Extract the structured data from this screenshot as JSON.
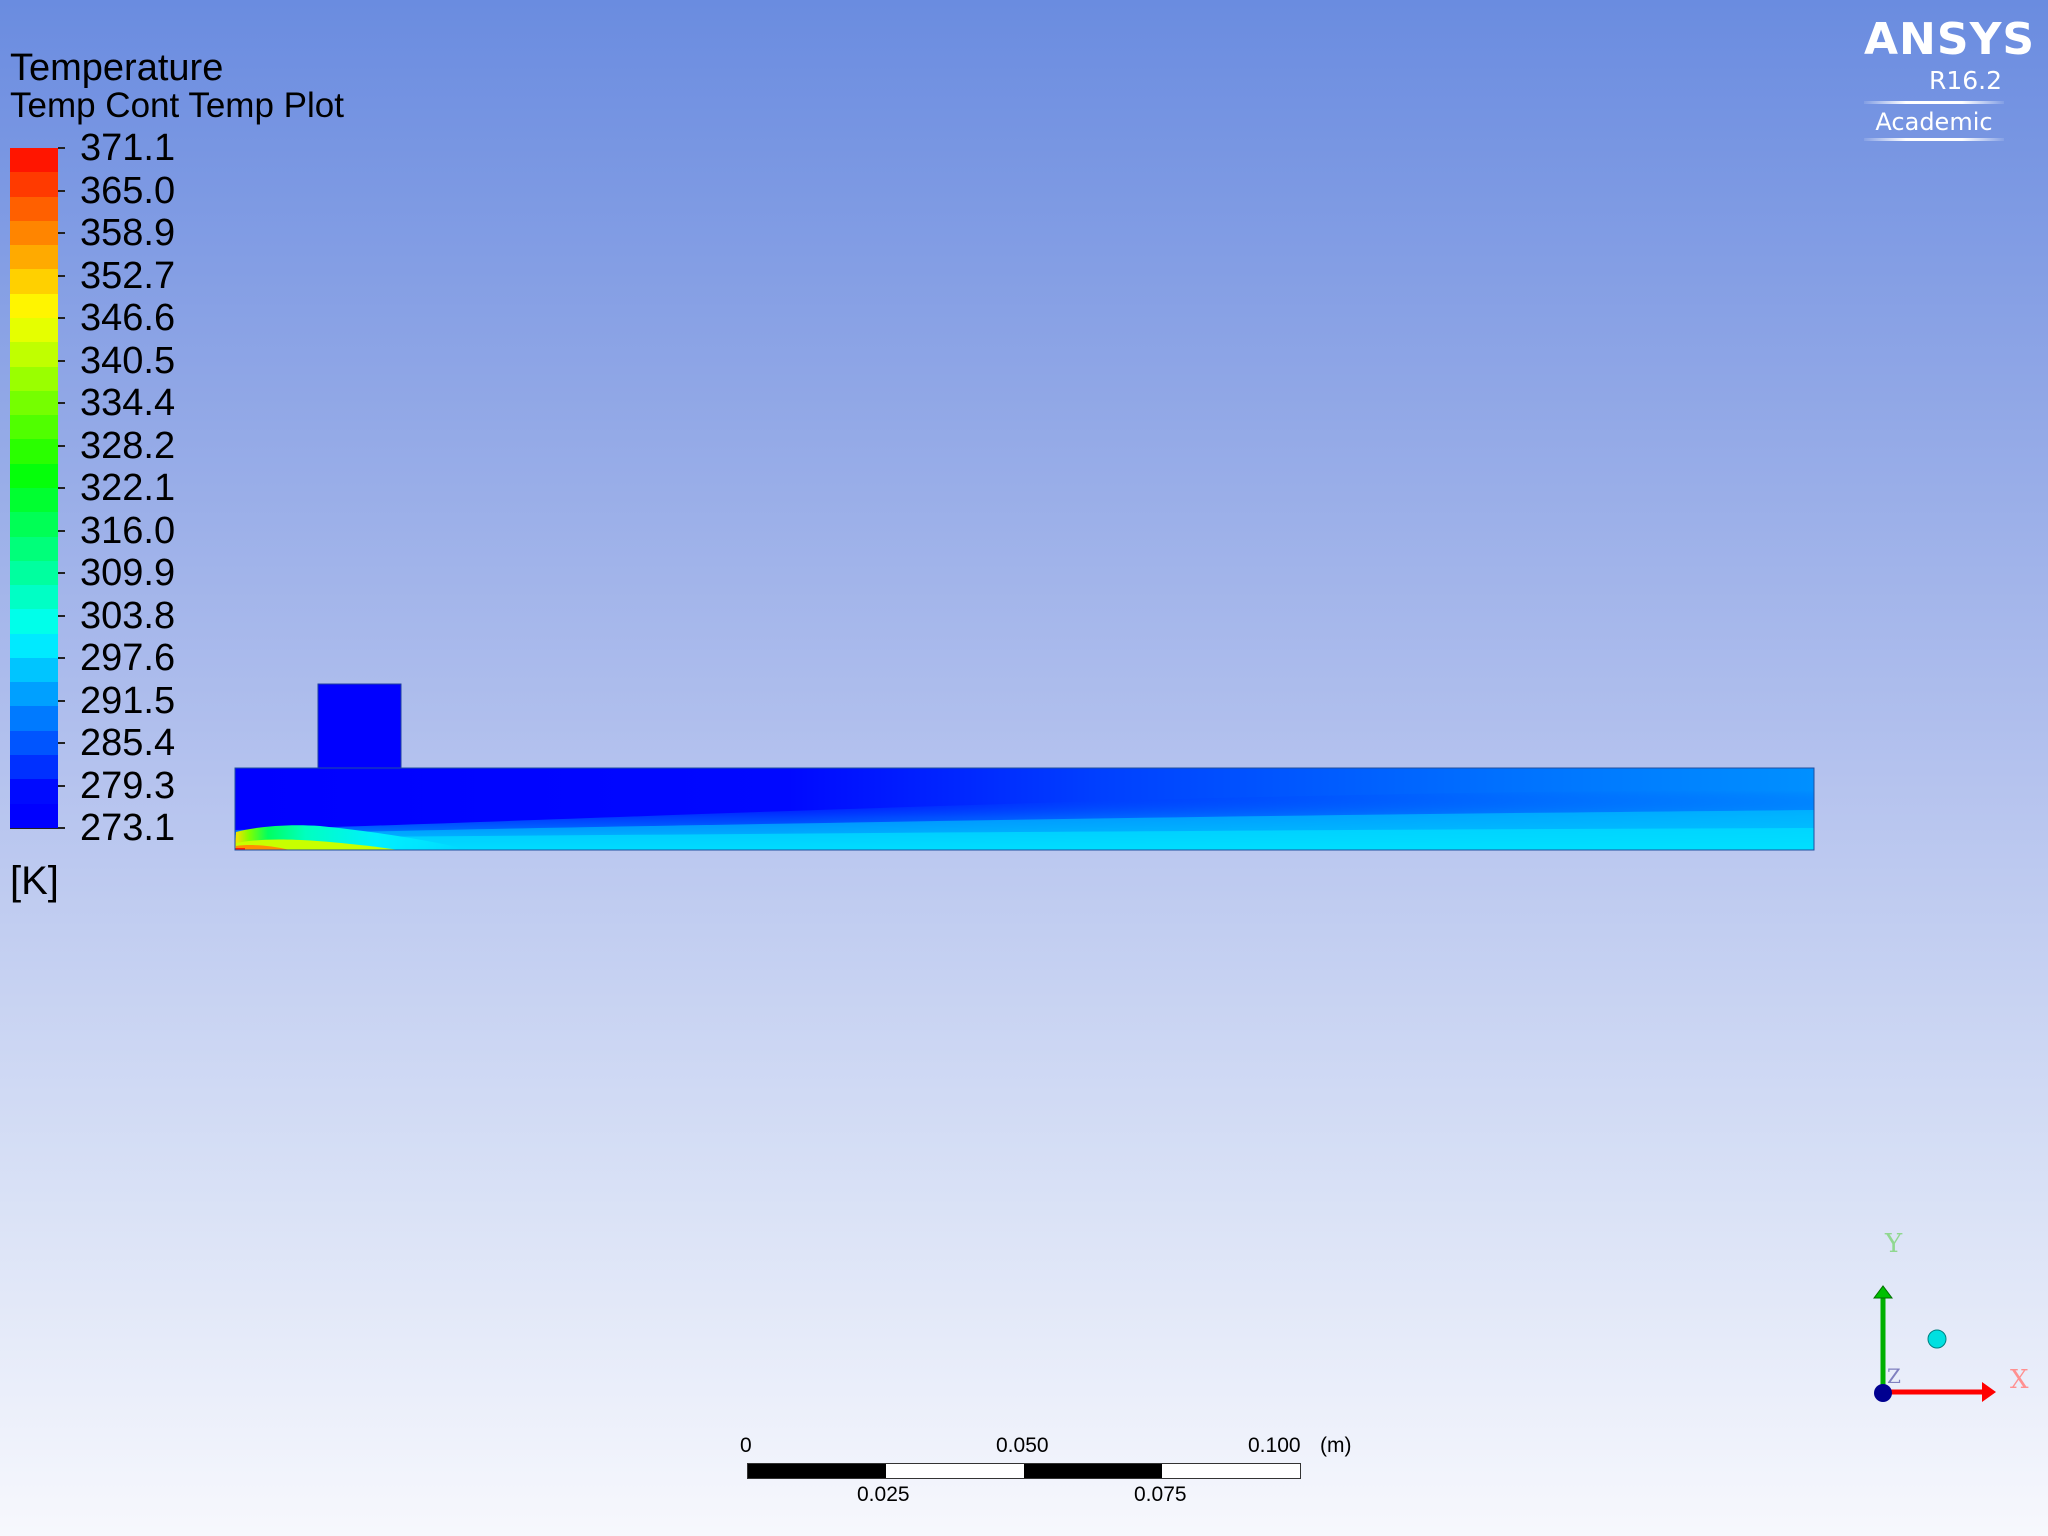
{
  "plot": {
    "variable": "Temperature",
    "name": "Temp Cont Temp Plot",
    "unit": "[K]"
  },
  "legend": {
    "labels": [
      "371.1",
      "365.0",
      "358.9",
      "352.7",
      "346.6",
      "340.5",
      "334.4",
      "328.2",
      "322.1",
      "316.0",
      "309.9",
      "303.8",
      "297.6",
      "291.5",
      "285.4",
      "279.3",
      "273.1"
    ],
    "bands_top_to_bottom": [
      "#ff1500",
      "#ff3a00",
      "#ff6000",
      "#ff8500",
      "#ffaa00",
      "#ffd000",
      "#fff500",
      "#e5ff00",
      "#c0ff00",
      "#9aff00",
      "#75ff00",
      "#50ff00",
      "#2aff00",
      "#05ff0a",
      "#00ff30",
      "#00ff55",
      "#00ff7a",
      "#00ff9f",
      "#00ffc5",
      "#00ffea",
      "#00eaff",
      "#00c5ff",
      "#00a0ff",
      "#007aff",
      "#0055ff",
      "#0030ff",
      "#000aff",
      "#0000ff"
    ]
  },
  "logo": {
    "brand": "ANSYS",
    "version": "R16.2",
    "edition": "Academic"
  },
  "scale": {
    "top_labels": [
      "0",
      "0.050",
      "0.100"
    ],
    "unit": "(m)",
    "bottom_labels": [
      "0.025",
      "0.075"
    ]
  },
  "triad": {
    "x_label": "X",
    "y_label": "Y",
    "z_label": "Z"
  },
  "colors": {
    "background_top": "#6a8ce0",
    "background_bottom": "#f7f8fd",
    "cold": "#0000ff",
    "hot": "#ff1500",
    "x_axis": "#ff0000",
    "y_axis": "#00b000",
    "z_axis": "#000080"
  }
}
